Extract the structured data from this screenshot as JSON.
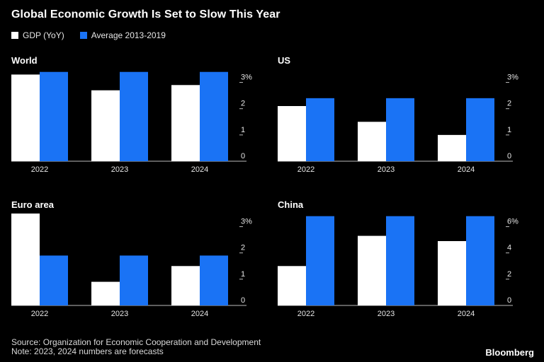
{
  "title": "Global Economic Growth Is Set to Slow This Year",
  "legend": [
    {
      "label": "GDP (YoY)",
      "color": "#ffffff"
    },
    {
      "label": "Average 2013-2019",
      "color": "#1a73f5"
    }
  ],
  "chart_data": [
    {
      "type": "bar",
      "title": "World",
      "categories": [
        "2022",
        "2023",
        "2024"
      ],
      "series": [
        {
          "name": "GDP (YoY)",
          "values": [
            3.3,
            2.7,
            2.9
          ]
        },
        {
          "name": "Average 2013-2019",
          "values": [
            3.4,
            3.4,
            3.4
          ]
        }
      ],
      "ylim": [
        0,
        3.5
      ],
      "yticks": [
        "0",
        "1",
        "2",
        "3%"
      ],
      "ytick_values": [
        0,
        1,
        2,
        3
      ]
    },
    {
      "type": "bar",
      "title": "US",
      "categories": [
        "2022",
        "2023",
        "2024"
      ],
      "series": [
        {
          "name": "GDP (YoY)",
          "values": [
            2.1,
            1.5,
            1.0
          ]
        },
        {
          "name": "Average 2013-2019",
          "values": [
            2.4,
            2.4,
            2.4
          ]
        }
      ],
      "ylim": [
        0,
        3.5
      ],
      "yticks": [
        "0",
        "1",
        "2",
        "3%"
      ],
      "ytick_values": [
        0,
        1,
        2,
        3
      ]
    },
    {
      "type": "bar",
      "title": "Euro area",
      "categories": [
        "2022",
        "2023",
        "2024"
      ],
      "series": [
        {
          "name": "GDP (YoY)",
          "values": [
            3.5,
            0.9,
            1.5
          ]
        },
        {
          "name": "Average 2013-2019",
          "values": [
            1.9,
            1.9,
            1.9
          ]
        }
      ],
      "ylim": [
        0,
        3.5
      ],
      "yticks": [
        "0",
        "1",
        "2",
        "3%"
      ],
      "ytick_values": [
        0,
        1,
        2,
        3
      ]
    },
    {
      "type": "bar",
      "title": "China",
      "categories": [
        "2022",
        "2023",
        "2024"
      ],
      "series": [
        {
          "name": "GDP (YoY)",
          "values": [
            3.0,
            5.3,
            4.9
          ]
        },
        {
          "name": "Average 2013-2019",
          "values": [
            6.8,
            6.8,
            6.8
          ]
        }
      ],
      "ylim": [
        0,
        7
      ],
      "yticks": [
        "0",
        "2",
        "4",
        "6%"
      ],
      "ytick_values": [
        0,
        2,
        4,
        6
      ]
    }
  ],
  "footer": {
    "source": "Source: Organization for Economic Cooperation and Development",
    "note": "Note: 2023, 2024 numbers are forecasts"
  },
  "brand": "Bloomberg"
}
